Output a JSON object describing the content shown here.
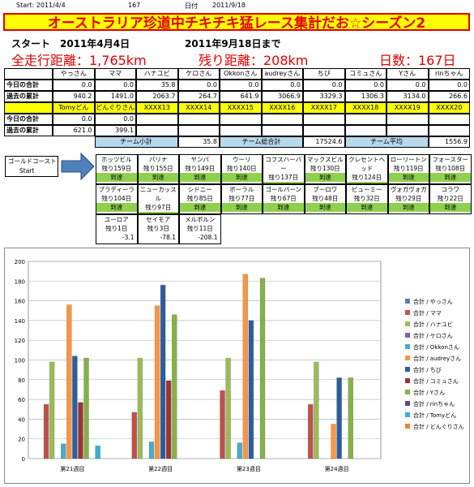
{
  "header": {
    "start": "Start: 2011/4/4",
    "days": "167",
    "date_label": "日付",
    "date": "2011/9/18"
  },
  "title": "オーストラリア珍道中チキチキ猛レース集計だお☆シーズン2",
  "summary": {
    "start": "スタート　2011年4月4日",
    "end": "2011年9月18日まで",
    "total": "全走行距離：1,765km",
    "remaining": "残り距離：208km",
    "days": "日数：167日"
  },
  "table": {
    "names1": [
      "やっさん",
      "ママ",
      "ハナユビ",
      "ケロさん",
      "Okkonさん",
      "audreyさん",
      "ちび",
      "コミュさん",
      "Yさん",
      "rinちゃん"
    ],
    "rows1": [
      {
        "label": "今日の合計",
        "values": [
          "0.0",
          "0.0",
          "35.8",
          "0.0",
          "0.0",
          "0.0",
          "0.0",
          "0.0",
          "0.0",
          "0.0"
        ]
      },
      {
        "label": "過去の累計",
        "values": [
          "940.2",
          "1491.0",
          "2063.7",
          "264.7",
          "641.9",
          "3066.9",
          "3329.3",
          "1306.3",
          "3134.0",
          "266.6"
        ]
      }
    ],
    "names2": [
      "Tomyどん",
      "どんぐりさん",
      "XXXX13",
      "XXXX14",
      "XXXX15",
      "XXXX16",
      "XXXX17",
      "XXXX18",
      "XXXX19",
      "XXXX20"
    ],
    "rows2": [
      {
        "label": "今日の合計",
        "values": [
          "0.0",
          "0.0"
        ]
      },
      {
        "label": "過去の累計",
        "values": [
          "621.0",
          "399.1"
        ]
      }
    ],
    "footer": {
      "subtotal_label": "チーム小計",
      "subtotal": "35.8",
      "total_label": "チーム総合計",
      "total": "17524.6",
      "average_label": "チーム平均",
      "average": "1556.9"
    }
  },
  "route": {
    "start": "ゴールドコースト",
    "start_sub": "Start",
    "towns": [
      {
        "name": "ホッツビル",
        "remain": "残り159日",
        "status": "到達"
      },
      {
        "name": "パリナ",
        "remain": "残り155日",
        "status": "到達"
      },
      {
        "name": "ヤンバ",
        "remain": "残り149日",
        "status": "到達"
      },
      {
        "name": "ウーリ",
        "remain": "残り140日",
        "status": "到達"
      },
      {
        "name": "コフスハーバー",
        "remain": "残り137日",
        "status": "到達"
      },
      {
        "name": "マックスビル",
        "remain": "残り130日",
        "status": "到達"
      },
      {
        "name": "クレセントヘッド",
        "remain": "残り124日",
        "status": "到達"
      },
      {
        "name": "ローリートン",
        "remain": "残り119日",
        "status": "到達"
      },
      {
        "name": "フォースター",
        "remain": "残り108日",
        "status": "到達"
      },
      {
        "name": "ブラディーラ",
        "remain": "残り104日",
        "status": "到達"
      },
      {
        "name": "ニューカッスル",
        "remain": "残り97日",
        "status": "到達"
      },
      {
        "name": "シドニー",
        "remain": "残り85日",
        "status": "到達"
      },
      {
        "name": "ボーラル",
        "remain": "残り77日",
        "status": "到達"
      },
      {
        "name": "ゴールバーン",
        "remain": "残り67日",
        "status": "到達"
      },
      {
        "name": "ブーロワ",
        "remain": "残り48日",
        "status": "到達"
      },
      {
        "name": "ビューミー",
        "remain": "残り32日",
        "status": "到達"
      },
      {
        "name": "ヴォガヴォガ",
        "remain": "残り29日",
        "status": "到達"
      },
      {
        "name": "コラワ",
        "remain": "残り22日",
        "status": "到達"
      },
      {
        "name": "ユーロア",
        "remain": "残り1日",
        "distance": "-3.1"
      },
      {
        "name": "セイモア",
        "remain": "残り3日",
        "distance": "-78.1"
      },
      {
        "name": "メルボルン",
        "remain": "残り11日",
        "distance": "-208.1"
      }
    ]
  },
  "chart_data": {
    "type": "bar",
    "categories": [
      "第21週目",
      "第22週目",
      "第23週目",
      "第24週目"
    ],
    "ylim": [
      0,
      200
    ],
    "yticks": [
      0,
      20,
      40,
      60,
      80,
      100,
      120,
      140,
      160,
      180,
      200
    ],
    "legend": "right",
    "series": [
      {
        "name": "合計 / やっさん",
        "color": "#4f81bd",
        "values": [
          0,
          0,
          0,
          0
        ]
      },
      {
        "name": "合計 / ママ",
        "color": "#c0504d",
        "values": [
          55,
          47,
          69,
          55
        ]
      },
      {
        "name": "合計 / ハナユビ",
        "color": "#9bbb59",
        "values": [
          98,
          102,
          102,
          98
        ]
      },
      {
        "name": "合計 / ケロさん",
        "color": "#8064a2",
        "values": [
          0,
          0,
          0,
          0
        ]
      },
      {
        "name": "合計 / Okkonさん",
        "color": "#4bacc6",
        "values": [
          15,
          17,
          16,
          0
        ]
      },
      {
        "name": "合計 / audreyさん",
        "color": "#f79646",
        "values": [
          156,
          155,
          187,
          35
        ]
      },
      {
        "name": "合計 / ちび",
        "color": "#2c5d9e",
        "values": [
          104,
          176,
          140,
          82
        ]
      },
      {
        "name": "合計 / コミュさん",
        "color": "#9c3431",
        "values": [
          57,
          79,
          0,
          0
        ]
      },
      {
        "name": "合計 / Yさん",
        "color": "#86b04a",
        "values": [
          102,
          146,
          183,
          82
        ]
      },
      {
        "name": "合計 / rinちゃん",
        "color": "#5f4a7c",
        "values": [
          0,
          0,
          0,
          0
        ]
      },
      {
        "name": "合計 / Tomyどん",
        "color": "#38b0d0",
        "values": [
          13,
          0,
          0,
          0
        ]
      },
      {
        "name": "合計 / どんぐりさん",
        "color": "#e08a30",
        "values": [
          0,
          0,
          0,
          0
        ]
      }
    ]
  }
}
